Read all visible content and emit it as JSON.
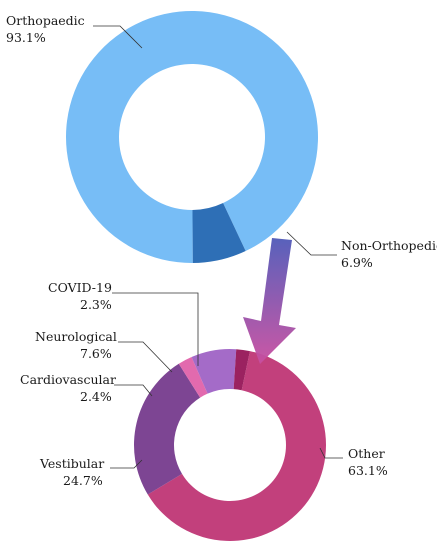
{
  "chart_data": [
    {
      "type": "pie",
      "variant": "donut",
      "slices": [
        {
          "name": "Orthopaedic",
          "value": 93.1,
          "label": "93.1%",
          "color": "#77bdf6"
        },
        {
          "name": "Non-Orthopedic",
          "value": 6.9,
          "label": "6.9%",
          "color": "#2e6fb6"
        }
      ]
    },
    {
      "type": "pie",
      "variant": "donut",
      "slices": [
        {
          "name": "Other",
          "value": 63.1,
          "label": "63.1%",
          "color": "#c2407c"
        },
        {
          "name": "Vestibular",
          "value": 24.7,
          "label": "24.7%",
          "color": "#7d4593"
        },
        {
          "name": "Cardiovascular",
          "value": 2.4,
          "label": "2.4%",
          "color": "#e26aae"
        },
        {
          "name": "Neurological",
          "value": 7.6,
          "label": "7.6%",
          "color": "#a46bc8"
        },
        {
          "name": "COVID-19",
          "value": 2.3,
          "label": "2.3%",
          "color": "#9b2260"
        }
      ]
    }
  ]
}
